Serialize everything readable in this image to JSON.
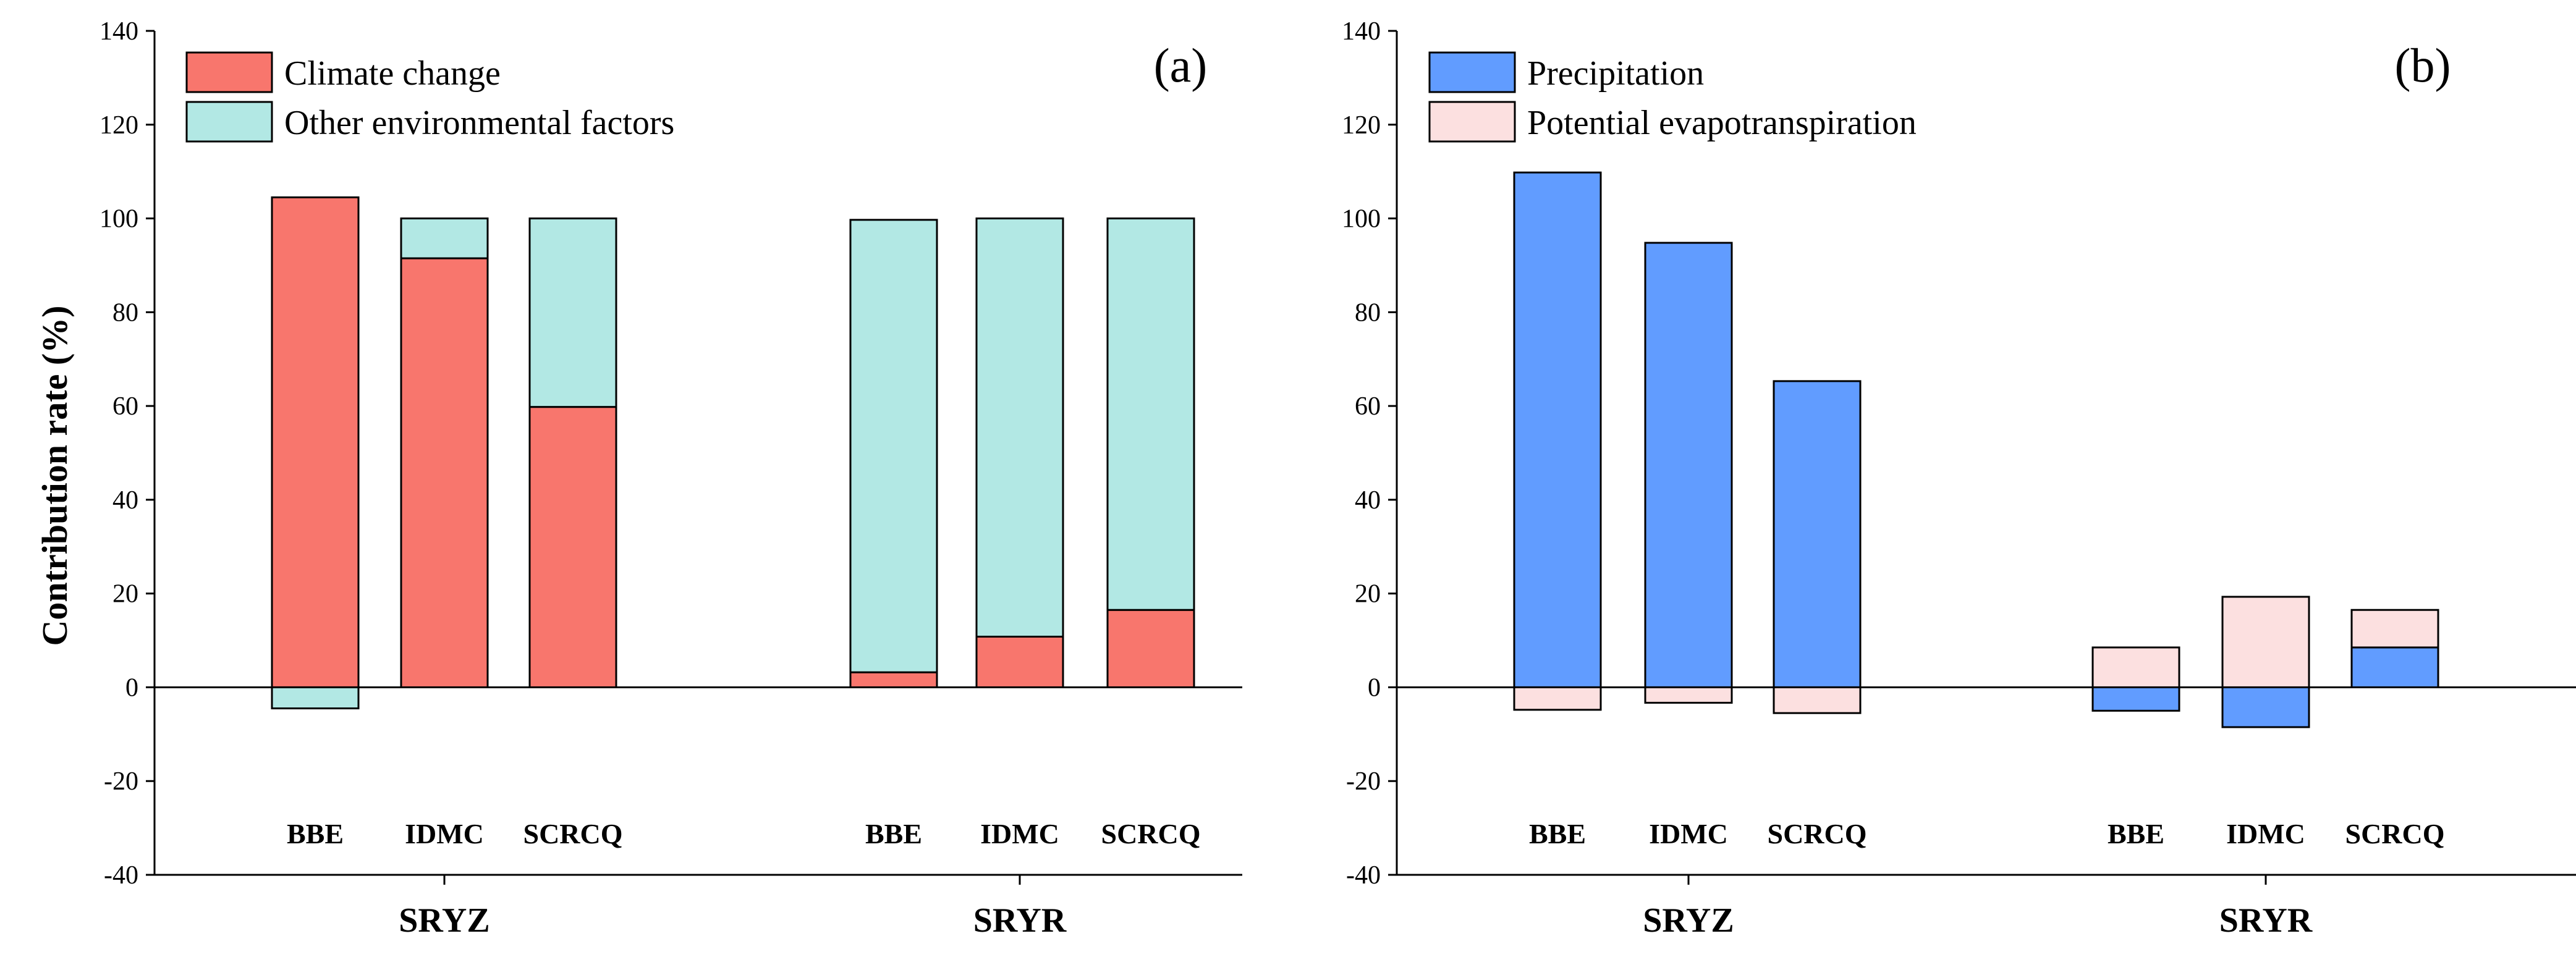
{
  "chart_data": [
    {
      "type": "bar",
      "stacked": true,
      "panel_label": "(a)",
      "ylabel": "Contribution rate (%)",
      "ylim": [
        -40,
        140
      ],
      "yticks": [
        "-40",
        "-20",
        "0",
        "20",
        "40",
        "60",
        "80",
        "100",
        "120",
        "140"
      ],
      "groups": [
        {
          "name": "SRYZ",
          "categories": [
            "BBE",
            "IDMC",
            "SCRCQ"
          ]
        },
        {
          "name": "SRYR",
          "categories": [
            "BBE",
            "IDMC",
            "SCRCQ"
          ]
        }
      ],
      "legend_position": "top-left",
      "series": [
        {
          "name": "Climate change",
          "color": "#F8766D",
          "values": [
            104.5,
            91.5,
            59.8,
            3.2,
            10.8,
            16.5
          ]
        },
        {
          "name": "Other environmental factors",
          "color": "#B2E8E4",
          "values": [
            -4.5,
            8.5,
            40.2,
            96.5,
            89.2,
            83.5
          ]
        }
      ]
    },
    {
      "type": "bar",
      "stacked": true,
      "panel_label": "(b)",
      "ylabel": "",
      "ylim": [
        -40,
        140
      ],
      "yticks": [
        "-40",
        "-20",
        "0",
        "20",
        "40",
        "60",
        "80",
        "100",
        "120",
        "140"
      ],
      "groups": [
        {
          "name": "SRYZ",
          "categories": [
            "BBE",
            "IDMC",
            "SCRCQ"
          ]
        },
        {
          "name": "SRYR",
          "categories": [
            "BBE",
            "IDMC",
            "SCRCQ"
          ]
        }
      ],
      "legend_position": "top-left",
      "series": [
        {
          "name": "Precipitation",
          "color": "#619CFF",
          "values": [
            109.8,
            94.8,
            65.3,
            -5.0,
            -8.5,
            8.5
          ]
        },
        {
          "name": "Potential evapotranspiration",
          "color": "#FCE0E0",
          "values": [
            -4.8,
            -3.3,
            -5.5,
            8.5,
            19.3,
            8.0
          ]
        }
      ]
    }
  ]
}
